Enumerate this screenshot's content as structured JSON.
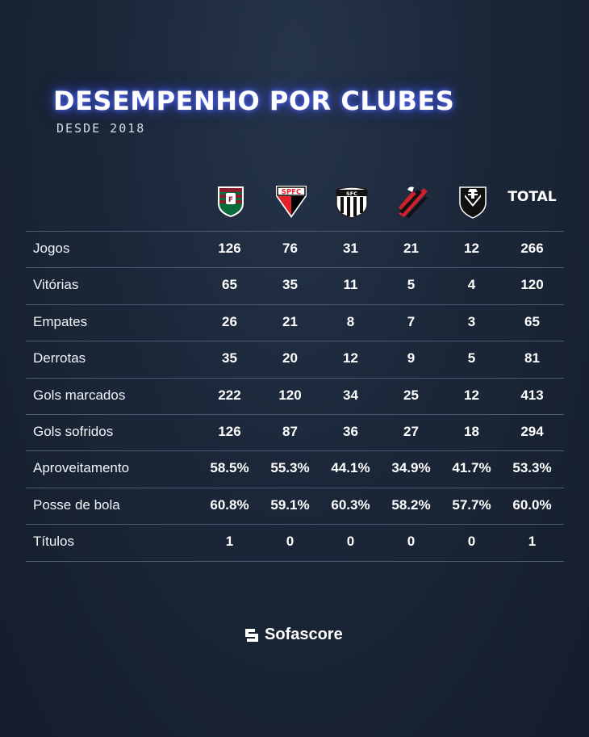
{
  "header": {
    "title": "DESEMPENHO POR CLUBES",
    "subtitle": "DESDE 2018"
  },
  "clubs": [
    {
      "crest": "fluminense-crest-icon",
      "colors": [
        "#8a1c2b",
        "#0b6b3a",
        "#ffffff"
      ]
    },
    {
      "crest": "sao-paulo-crest-icon",
      "text": "SPFC",
      "colors": [
        "#e3222b",
        "#000000",
        "#ffffff"
      ]
    },
    {
      "crest": "santos-crest-icon",
      "colors": [
        "#000000",
        "#ffffff"
      ]
    },
    {
      "crest": "athletico-paranaense-crest-icon",
      "colors": [
        "#d0202d",
        "#000000"
      ]
    },
    {
      "crest": "vasco-crest-icon",
      "colors": [
        "#000000",
        "#ffffff"
      ]
    }
  ],
  "total_label": "TOTAL",
  "rows": [
    {
      "label": "Jogos",
      "values": [
        "126",
        "76",
        "31",
        "21",
        "12",
        "266"
      ]
    },
    {
      "label": "Vitórias",
      "values": [
        "65",
        "35",
        "11",
        "5",
        "4",
        "120"
      ]
    },
    {
      "label": "Empates",
      "values": [
        "26",
        "21",
        "8",
        "7",
        "3",
        "65"
      ]
    },
    {
      "label": "Derrotas",
      "values": [
        "35",
        "20",
        "12",
        "9",
        "5",
        "81"
      ]
    },
    {
      "label": "Gols marcados",
      "values": [
        "222",
        "120",
        "34",
        "25",
        "12",
        "413"
      ]
    },
    {
      "label": "Gols sofridos",
      "values": [
        "126",
        "87",
        "36",
        "27",
        "18",
        "294"
      ]
    },
    {
      "label": "Aproveitamento",
      "values": [
        "58.5%",
        "55.3%",
        "44.1%",
        "34.9%",
        "41.7%",
        "53.3%"
      ]
    },
    {
      "label": "Posse de bola",
      "values": [
        "60.8%",
        "59.1%",
        "60.3%",
        "58.2%",
        "57.7%",
        "60.0%"
      ]
    },
    {
      "label": "Títulos",
      "values": [
        "1",
        "0",
        "0",
        "0",
        "0",
        "1"
      ]
    }
  ],
  "footer": {
    "brand": "Sofascore",
    "brand_icon": "sofascore-logo-icon"
  }
}
